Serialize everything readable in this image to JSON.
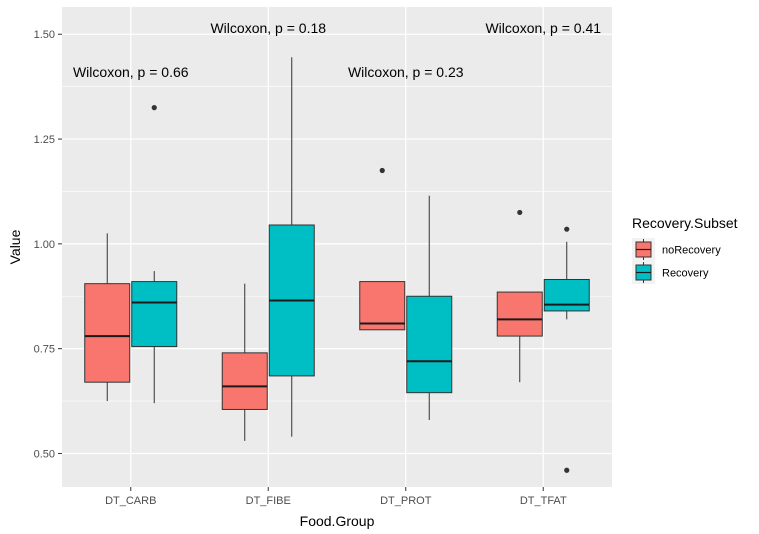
{
  "chart_data": {
    "type": "boxplot",
    "xlabel": "Food.Group",
    "ylabel": "Value",
    "categories": [
      "DT_CARB",
      "DT_FIBE",
      "DT_PROT",
      "DT_TFAT"
    ],
    "ylim": [
      0.42,
      1.565
    ],
    "yticks": [
      0.5,
      0.75,
      1.0,
      1.25,
      1.5
    ],
    "ytick_labels": [
      "0.50",
      "0.75",
      "1.00",
      "1.25",
      "1.50"
    ],
    "grid": true,
    "legend": {
      "title": "Recovery.Subset",
      "placement": "right",
      "entries": [
        "noRecovery",
        "Recovery"
      ]
    },
    "series": [
      {
        "name": "noRecovery",
        "color": "#F8766D",
        "boxes": [
          {
            "category": "DT_CARB",
            "lower_whisker": 0.625,
            "q1": 0.67,
            "median": 0.78,
            "q3": 0.905,
            "upper_whisker": 1.025,
            "outliers": []
          },
          {
            "category": "DT_FIBE",
            "lower_whisker": 0.53,
            "q1": 0.605,
            "median": 0.66,
            "q3": 0.74,
            "upper_whisker": 0.905,
            "outliers": []
          },
          {
            "category": "DT_PROT",
            "lower_whisker": 0.795,
            "q1": 0.795,
            "median": 0.81,
            "q3": 0.91,
            "upper_whisker": 0.91,
            "outliers": [
              1.175
            ]
          },
          {
            "category": "DT_TFAT",
            "lower_whisker": 0.67,
            "q1": 0.78,
            "median": 0.82,
            "q3": 0.885,
            "upper_whisker": 0.885,
            "outliers": [
              1.075
            ]
          }
        ]
      },
      {
        "name": "Recovery",
        "color": "#00BFC4",
        "boxes": [
          {
            "category": "DT_CARB",
            "lower_whisker": 0.62,
            "q1": 0.755,
            "median": 0.86,
            "q3": 0.91,
            "upper_whisker": 0.935,
            "outliers": [
              1.325
            ]
          },
          {
            "category": "DT_FIBE",
            "lower_whisker": 0.54,
            "q1": 0.685,
            "median": 0.865,
            "q3": 1.045,
            "upper_whisker": 1.445,
            "outliers": []
          },
          {
            "category": "DT_PROT",
            "lower_whisker": 0.58,
            "q1": 0.645,
            "median": 0.72,
            "q3": 0.875,
            "upper_whisker": 1.115,
            "outliers": []
          },
          {
            "category": "DT_TFAT",
            "lower_whisker": 0.82,
            "q1": 0.84,
            "median": 0.855,
            "q3": 0.915,
            "upper_whisker": 1.005,
            "outliers": [
              1.035,
              0.46
            ]
          }
        ]
      }
    ],
    "annotations": [
      {
        "category": "DT_CARB",
        "text": "Wilcoxon, p = 0.66",
        "y": 1.41
      },
      {
        "category": "DT_FIBE",
        "text": "Wilcoxon, p = 0.18",
        "y": 1.515
      },
      {
        "category": "DT_PROT",
        "text": "Wilcoxon, p = 0.23",
        "y": 1.41
      },
      {
        "category": "DT_TFAT",
        "text": "Wilcoxon, p = 0.41",
        "y": 1.515
      }
    ]
  }
}
